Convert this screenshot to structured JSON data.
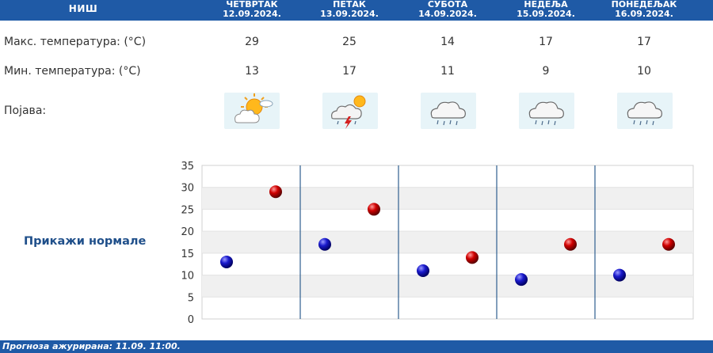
{
  "header": {
    "city": "НИШ",
    "days": [
      {
        "name": "ЧЕТВРТАК",
        "date": "12.09.2024."
      },
      {
        "name": "ПЕТАК",
        "date": "13.09.2024."
      },
      {
        "name": "СУБОТА",
        "date": "14.09.2024."
      },
      {
        "name": "НЕДЕЉА",
        "date": "15.09.2024."
      },
      {
        "name": "ПОНЕДЕЉАК",
        "date": "16.09.2024."
      }
    ]
  },
  "rows": {
    "max_label": "Макс. температура: (°C)",
    "min_label": "Мин. температура: (°C)",
    "phenomenon_label": "Појава:"
  },
  "max_temps": [
    "29",
    "25",
    "14",
    "17",
    "17"
  ],
  "min_temps": [
    "13",
    "17",
    "11",
    "9",
    "10"
  ],
  "icons": [
    "sun-behind-cloud-icon",
    "thunderstorm-icon",
    "rain-cloud-icon",
    "rain-cloud-icon",
    "rain-cloud-icon"
  ],
  "normals_link": "Прикажи нормале",
  "footer": {
    "updated": "Прогноза ажурирана:  11.09.  11:00."
  },
  "chart_data": {
    "type": "scatter",
    "categories": [
      "ЧЕТВРТАК",
      "ПЕТАК",
      "СУБОТА",
      "НЕДЕЉА",
      "ПОНЕДЕЉАК"
    ],
    "series": [
      {
        "values": [
          13,
          17,
          11,
          9,
          10
        ],
        "color": "#1010c8"
      },
      {
        "values": [
          29,
          25,
          14,
          17,
          17
        ],
        "color": "#cc0000"
      }
    ],
    "ylim": [
      0,
      35
    ],
    "yticks": [
      "0",
      "5",
      "10",
      "15",
      "20",
      "25",
      "30",
      "35"
    ],
    "grid": true
  }
}
